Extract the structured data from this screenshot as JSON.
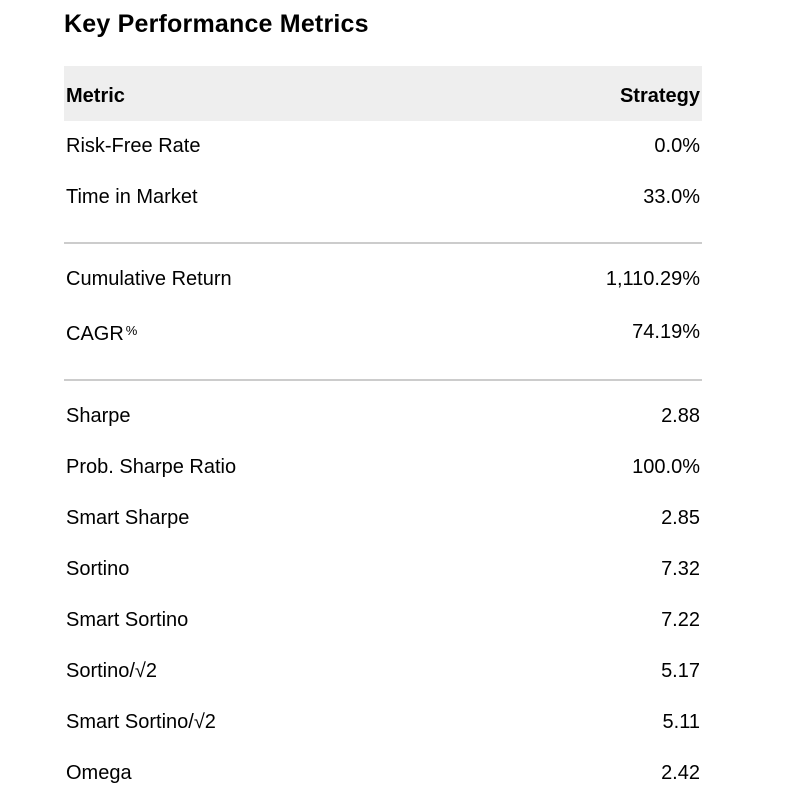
{
  "colors": {
    "background": "#ffffff",
    "header_bg": "#eeeeee",
    "divider": "#cccccc",
    "text": "#000000"
  },
  "chart_data": {
    "type": "table",
    "title": "Key Performance Metrics",
    "columns": [
      "Metric",
      "Strategy"
    ],
    "sections": [
      {
        "rows": [
          {
            "metric": "Risk-Free Rate",
            "value": "0.0%"
          },
          {
            "metric": "Time in Market",
            "value": "33.0%"
          }
        ]
      },
      {
        "rows": [
          {
            "metric": "Cumulative Return",
            "value": "1,110.29%"
          },
          {
            "metric": "CAGR",
            "metric_suffix": "%",
            "value": "74.19%"
          }
        ]
      },
      {
        "rows": [
          {
            "metric": "Sharpe",
            "value": "2.88"
          },
          {
            "metric": "Prob. Sharpe Ratio",
            "value": "100.0%"
          },
          {
            "metric": "Smart Sharpe",
            "value": "2.85"
          },
          {
            "metric": "Sortino",
            "value": "7.32"
          },
          {
            "metric": "Smart Sortino",
            "value": "7.22"
          },
          {
            "metric": "Sortino/√2",
            "value": "5.17"
          },
          {
            "metric": "Smart Sortino/√2",
            "value": "5.11"
          },
          {
            "metric": "Omega",
            "value": "2.42"
          }
        ]
      }
    ]
  }
}
